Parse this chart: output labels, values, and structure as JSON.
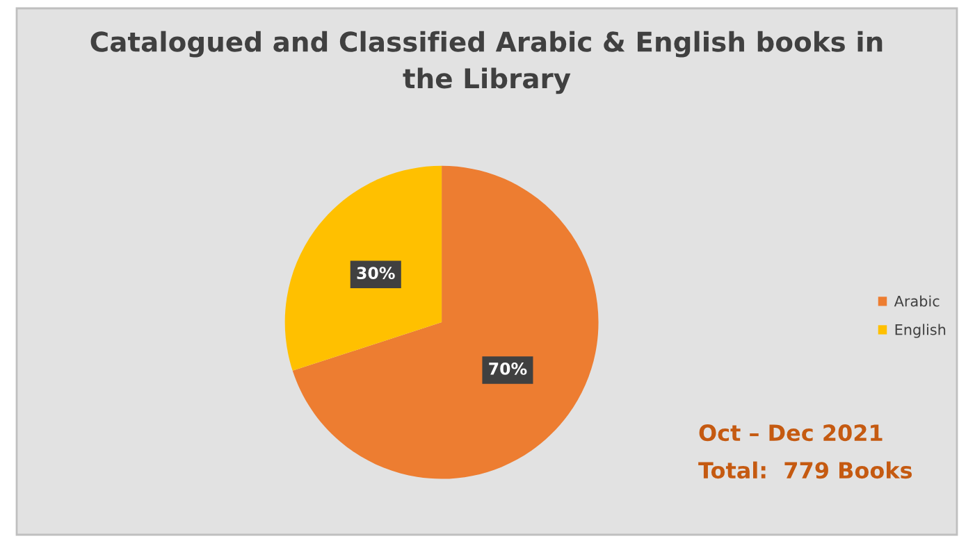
{
  "chart_data": {
    "type": "pie",
    "title": "Catalogued and Classified Arabic & English books in\nthe Library",
    "categories": [
      "Arabic",
      "English"
    ],
    "values": [
      70,
      30
    ],
    "colors": [
      "#ed7d31",
      "#ffc000"
    ],
    "value_labels": [
      "70%",
      "30%"
    ],
    "legend": "right",
    "annotations": [
      "Oct – Dec 2021",
      "Total:  779 Books"
    ]
  }
}
